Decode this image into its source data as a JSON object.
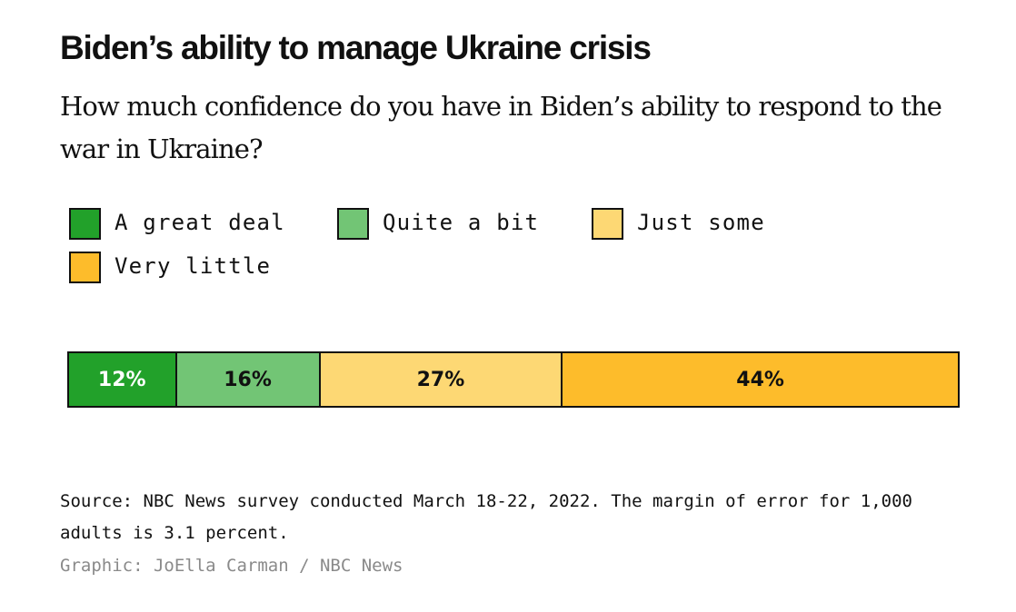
{
  "header": {
    "title": "Biden’s ability to manage Ukraine crisis",
    "subtitle": "How much confidence do you have in Biden’s ability to respond to the war in Ukraine?"
  },
  "chart_data": {
    "type": "bar",
    "stacked": true,
    "orientation": "horizontal",
    "unit": "%",
    "series": [
      {
        "name": "A great deal",
        "value": 12,
        "label": "12%",
        "color": "#22a12a",
        "text_color": "#ffffff"
      },
      {
        "name": "Quite a bit",
        "value": 16,
        "label": "16%",
        "color": "#72c575",
        "text_color": "#111111"
      },
      {
        "name": "Just some",
        "value": 27,
        "label": "27%",
        "color": "#fdd874",
        "text_color": "#111111"
      },
      {
        "name": "Very little",
        "value": 44,
        "label": "44%",
        "color": "#fdbc2b",
        "text_color": "#111111"
      }
    ],
    "legend_placement": "top"
  },
  "footer": {
    "source": "Source: NBC News survey conducted March 18-22, 2022. The margin of error for 1,000 adults is 3.1 percent.",
    "credit": "Graphic: JoElla Carman / NBC News"
  }
}
